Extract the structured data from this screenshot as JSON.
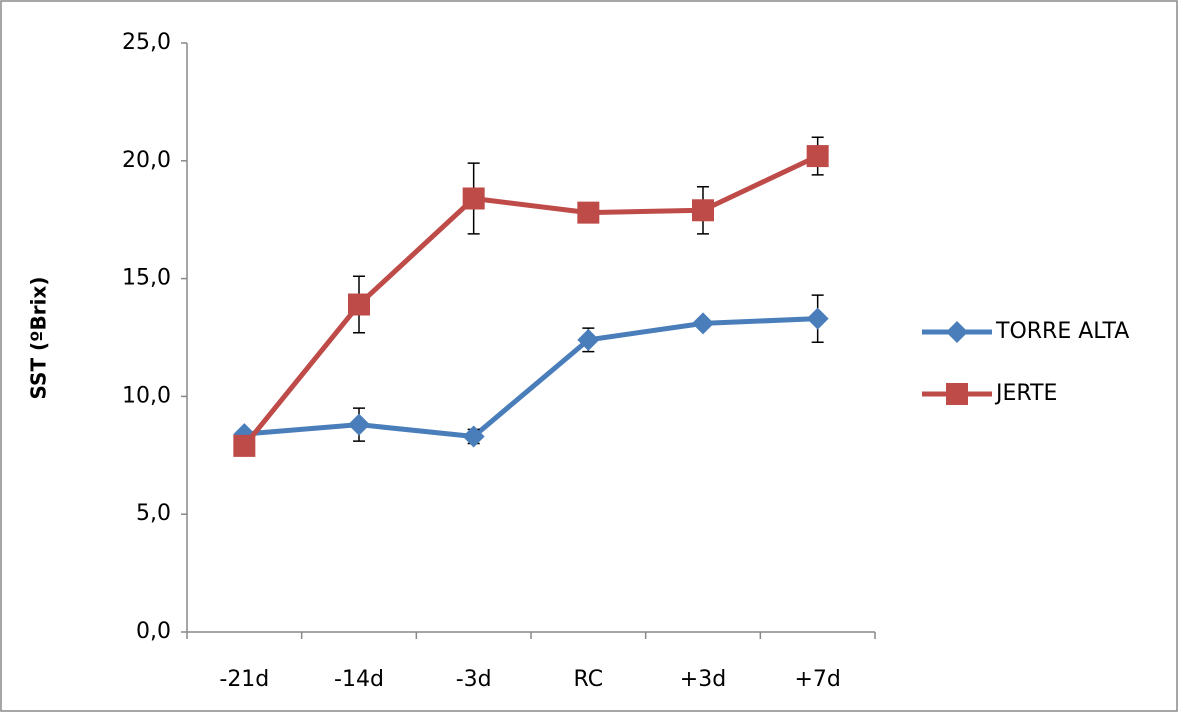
{
  "chart_data": {
    "type": "line",
    "y_label": "SST (ºBrix)",
    "categories": [
      "-21d",
      "-14d",
      "-3d",
      "RC",
      "+3d",
      "+7d"
    ],
    "series": [
      {
        "name": "TORRE ALTA",
        "color": "#4a7ebb",
        "marker": "diamond",
        "values": [
          8.4,
          8.8,
          8.3,
          12.4,
          13.1,
          13.3
        ],
        "errors": [
          0.1,
          0.7,
          0.3,
          0.5,
          0.1,
          1.0
        ]
      },
      {
        "name": "JERTE",
        "color": "#be4b48",
        "marker": "square",
        "values": [
          7.9,
          13.9,
          18.4,
          17.8,
          17.9,
          20.2
        ],
        "errors": [
          0.1,
          1.2,
          1.5,
          0.1,
          1.0,
          0.8
        ]
      }
    ],
    "ylim": [
      0,
      25
    ],
    "yticks": [
      {
        "value": 0,
        "label": "0,0"
      },
      {
        "value": 5,
        "label": "5,0"
      },
      {
        "value": 10,
        "label": "10,0"
      },
      {
        "value": 15,
        "label": "15,0"
      },
      {
        "value": 20,
        "label": "20,0"
      },
      {
        "value": 25,
        "label": "25,0"
      }
    ],
    "legend": "right"
  }
}
